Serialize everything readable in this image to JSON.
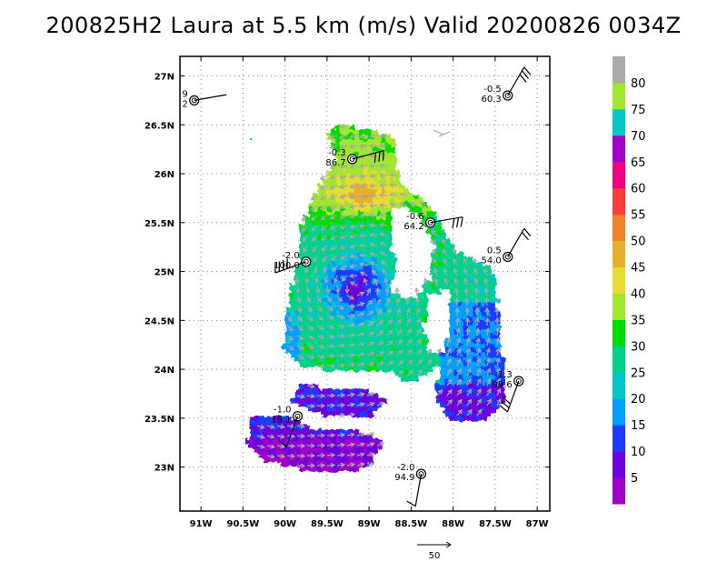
{
  "title": "200825H2 Laura at 5.5 km (m/s) Valid 20200826  0034Z",
  "chart_data": {
    "type": "heatmap",
    "title": "200825H2 Laura at 5.5 km (m/s) Valid 20200826  0034Z",
    "xlim": [
      -91.25,
      -86.85
    ],
    "ylim": [
      22.55,
      27.2
    ],
    "x_ticks": [
      -91,
      -90.5,
      -90,
      -89.5,
      -89,
      -88.5,
      -88,
      -87.5,
      -87
    ],
    "x_tick_labels": [
      "91W",
      "90.5W",
      "90W",
      "89.5W",
      "89W",
      "88.5W",
      "88W",
      "87.5W",
      "87W"
    ],
    "y_ticks": [
      23,
      23.5,
      24,
      24.5,
      25,
      25.5,
      26,
      26.5,
      27
    ],
    "y_tick_labels": [
      "23N",
      "23.5N",
      "24N",
      "24.5N",
      "25N",
      "25.5N",
      "26N",
      "26.5N",
      "27N"
    ],
    "grid": true,
    "colorbar": {
      "labels": [
        "5",
        "10",
        "15",
        "20",
        "25",
        "30",
        "35",
        "40",
        "45",
        "50",
        "55",
        "60",
        "65",
        "70",
        "75",
        "80"
      ],
      "colors": [
        "#a000c8",
        "#6e00dc",
        "#1e3cff",
        "#00a0ff",
        "#00c8c8",
        "#00d28c",
        "#00dc00",
        "#a0e632",
        "#e6dc32",
        "#e6af2d",
        "#f08228",
        "#fa3c3c",
        "#f00082",
        "#a000c8",
        "#00c8c8",
        "#a0e632",
        "#aaaaaa"
      ]
    },
    "reference_vector": {
      "label": "50",
      "value": 50
    },
    "stations": [
      {
        "lon": -91.08,
        "lat": 26.75,
        "top": "9",
        "bottom": "2"
      },
      {
        "lon": -87.35,
        "lat": 26.8,
        "top": "-0.5",
        "bottom": "60.3"
      },
      {
        "lon": -89.2,
        "lat": 26.15,
        "top": "-0.3",
        "bottom": "86.7"
      },
      {
        "lon": -88.27,
        "lat": 25.5,
        "top": "-0.6",
        "bottom": "64.2"
      },
      {
        "lon": -89.75,
        "lat": 25.1,
        "top": "-2.0",
        "bottom": "100.0"
      },
      {
        "lon": -87.35,
        "lat": 25.15,
        "top": "0.5",
        "bottom": "54.0"
      },
      {
        "lon": -87.22,
        "lat": 23.88,
        "top": "-1.3",
        "bottom": "99.6"
      },
      {
        "lon": -89.85,
        "lat": 23.52,
        "top": "-1.0",
        "bottom": "16.1"
      },
      {
        "lon": -88.38,
        "lat": 22.93,
        "top": "-2.0",
        "bottom": "94.9"
      }
    ]
  }
}
